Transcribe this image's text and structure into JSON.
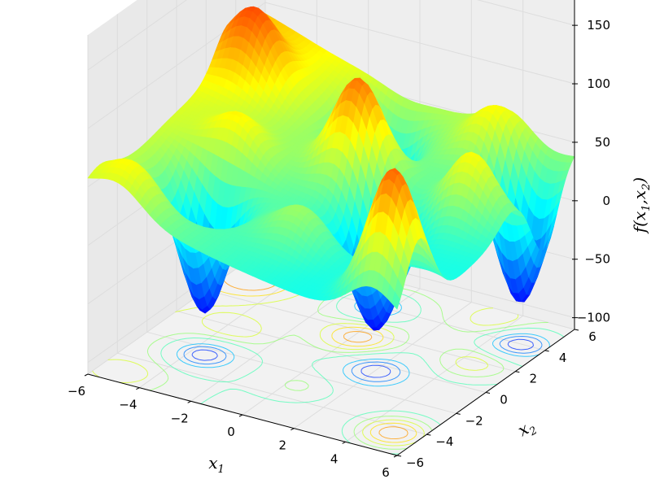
{
  "chart_data": {
    "type": "surface",
    "title": "",
    "xlabel": "x",
    "xlabel_sub": "1",
    "ylabel": "x",
    "ylabel_sub": "2",
    "zlabel_parts": [
      "f(x",
      "1",
      ",x",
      "2",
      ")"
    ],
    "xlim": [
      -6,
      6
    ],
    "ylim": [
      -6,
      6
    ],
    "zlim": [
      -110,
      180
    ],
    "x_ticks": [
      -6,
      -4,
      -2,
      0,
      2,
      4,
      6
    ],
    "y_ticks": [
      -6,
      -4,
      -2,
      0,
      2,
      4,
      6
    ],
    "z_ticks": [
      -100,
      -50,
      0,
      50,
      100,
      150
    ],
    "x_tick_labels": [
      "−6",
      "−4",
      "−2",
      "0",
      "2",
      "4",
      "6"
    ],
    "y_tick_labels": [
      "−6",
      "−4",
      "−2",
      "0",
      "2",
      "4",
      "6"
    ],
    "z_tick_labels": [
      "−100",
      "−50",
      "0",
      "50",
      "100",
      "150"
    ],
    "colormap": "jet",
    "grid": true,
    "contour_projection": "floor",
    "features": {
      "baseline_level": 0,
      "tilt": {
        "at_x_min": 55,
        "at_y_max": 45
      },
      "wells": [
        {
          "x": -3.5,
          "y": -2.5,
          "depth": -110
        },
        {
          "x": -0.5,
          "y": 4.0,
          "depth": -100
        },
        {
          "x": 2.0,
          "y": -0.5,
          "depth": -90
        },
        {
          "x": 5.0,
          "y": 4.0,
          "depth": -110
        }
      ],
      "peaks": [
        {
          "x": 5.0,
          "y": -4.5,
          "height": 115
        },
        {
          "x": 0.2,
          "y": 1.5,
          "height": 85
        },
        {
          "x": -5.0,
          "y": 3.5,
          "height": 55
        },
        {
          "x": 4.5,
          "y": 1.8,
          "height": 55
        },
        {
          "x": -3.5,
          "y": -0.3,
          "height": 35
        },
        {
          "x": 0.5,
          "y": -3.0,
          "height": 30
        },
        {
          "x": 3.5,
          "y": 5.0,
          "height": 40
        },
        {
          "x": -4.8,
          "y": -5.2,
          "height": 30
        }
      ]
    }
  }
}
